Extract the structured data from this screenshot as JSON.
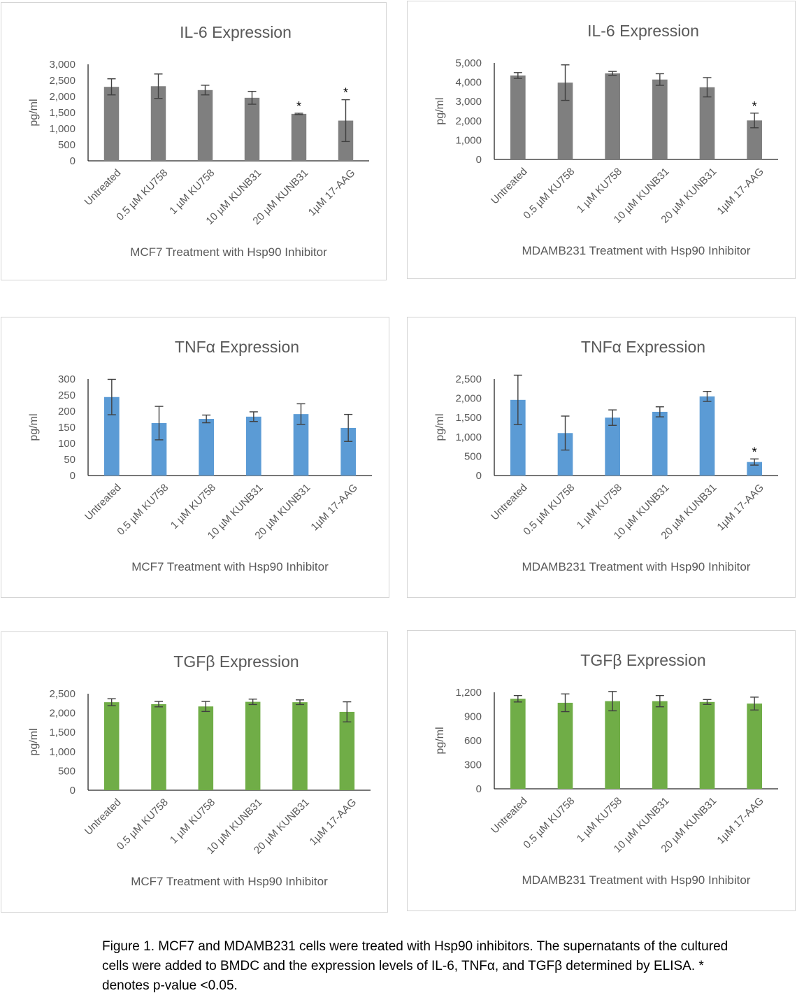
{
  "charts": [
    {
      "type": "bar",
      "title": "IL-6 Expression",
      "xlabel": "MCF7 Treatment with Hsp90 Inhibitor",
      "ylabel": "pg/ml",
      "color": "#7f7f7f",
      "ylim": [
        0,
        3000
      ],
      "yticks": [
        "0",
        "500",
        "1,000",
        "1,500",
        "2,000",
        "2,500",
        "3,000"
      ],
      "ytick_values": [
        0,
        500,
        1000,
        1500,
        2000,
        2500,
        3000
      ],
      "categories": [
        "Untreated",
        "0.5 µM KU758",
        "1 µM KU758",
        "10 µM KUNB31",
        "20 µM KUNB31",
        "1µM 17-AAG"
      ],
      "values": [
        2300,
        2320,
        2200,
        1960,
        1460,
        1250
      ],
      "errors": [
        250,
        380,
        150,
        200,
        20,
        650
      ],
      "significance": [
        "",
        "",
        "",
        "",
        "*",
        "*"
      ]
    },
    {
      "type": "bar",
      "title": "IL-6 Expression",
      "xlabel": "MDAMB231 Treatment with Hsp90 Inhibitor",
      "ylabel": "pg/ml",
      "color": "#7f7f7f",
      "ylim": [
        0,
        5000
      ],
      "yticks": [
        "0",
        "1,000",
        "2,000",
        "3,000",
        "4,000",
        "5,000"
      ],
      "ytick_values": [
        0,
        1000,
        2000,
        3000,
        4000,
        5000
      ],
      "categories": [
        "Untreated",
        "0.5 µM KU758",
        "1 µM KU758",
        "10 µM KUNB31",
        "20 µM KUNB31",
        "1µM 17-AAG"
      ],
      "values": [
        4350,
        3980,
        4460,
        4140,
        3740,
        2020
      ],
      "errors": [
        150,
        920,
        100,
        300,
        500,
        380
      ],
      "significance": [
        "",
        "",
        "",
        "",
        "",
        "*"
      ]
    },
    {
      "type": "bar",
      "title": "TNFα Expression",
      "xlabel": "MCF7 Treatment with Hsp90 Inhibitor",
      "ylabel": "pg/ml",
      "color": "#5b9bd5",
      "ylim": [
        0,
        300
      ],
      "yticks": [
        "0",
        "50",
        "100",
        "150",
        "200",
        "250",
        "300"
      ],
      "ytick_values": [
        0,
        50,
        100,
        150,
        200,
        250,
        300
      ],
      "categories": [
        "Untreated",
        "0.5 µM KU758",
        "1 µM KU758",
        "10 µM KUNB31",
        "20 µM KUNB31",
        "1µM 17-AAG"
      ],
      "values": [
        244,
        163,
        176,
        183,
        191,
        148
      ],
      "errors": [
        55,
        52,
        12,
        15,
        32,
        42
      ],
      "significance": [
        "",
        "",
        "",
        "",
        "",
        ""
      ]
    },
    {
      "type": "bar",
      "title": "TNFα Expression",
      "xlabel": "MDAMB231 Treatment with Hsp90 Inhibitor",
      "ylabel": "pg/ml",
      "color": "#5b9bd5",
      "ylim": [
        0,
        2500
      ],
      "yticks": [
        "0",
        "500",
        "1,000",
        "1,500",
        "2,000",
        "2,500"
      ],
      "ytick_values": [
        0,
        500,
        1000,
        1500,
        2000,
        2500
      ],
      "categories": [
        "Untreated",
        "0.5 µM KU758",
        "1 µM KU758",
        "10 µM KUNB31",
        "20 µM KUNB31",
        "1µM 17-AAG"
      ],
      "values": [
        1960,
        1100,
        1500,
        1650,
        2050,
        350
      ],
      "errors": [
        640,
        440,
        200,
        130,
        130,
        80
      ],
      "significance": [
        "",
        "",
        "",
        "",
        "",
        "*"
      ]
    },
    {
      "type": "bar",
      "title": "TGFβ Expression",
      "xlabel": "MCF7 Treatment with Hsp90 Inhibitor",
      "ylabel": "pg/ml",
      "color": "#70ad47",
      "ylim": [
        0,
        2500
      ],
      "yticks": [
        "0",
        "500",
        "1,000",
        "1,500",
        "2,000",
        "2,500"
      ],
      "ytick_values": [
        0,
        500,
        1000,
        1500,
        2000,
        2500
      ],
      "categories": [
        "Untreated",
        "0.5 µM KU758",
        "1 µM KU758",
        "10 µM KUNB31",
        "20 µM KUNB31",
        "1µM 17-AAG"
      ],
      "values": [
        2280,
        2230,
        2170,
        2290,
        2280,
        2030
      ],
      "errors": [
        90,
        70,
        130,
        70,
        60,
        260
      ],
      "significance": [
        "",
        "",
        "",
        "",
        "",
        ""
      ]
    },
    {
      "type": "bar",
      "title": "TGFβ Expression",
      "xlabel": "MDAMB231 Treatment with Hsp90 Inhibitor",
      "ylabel": "pg/ml",
      "color": "#70ad47",
      "ylim": [
        0,
        1200
      ],
      "yticks": [
        "0",
        "300",
        "600",
        "900",
        "1,200"
      ],
      "ytick_values": [
        0,
        300,
        600,
        900,
        1200
      ],
      "categories": [
        "Untreated",
        "0.5 µM KU758",
        "1 µM KU758",
        "10 µM KUNB31",
        "20 µM KUNB31",
        "1µM 17-AAG"
      ],
      "values": [
        1120,
        1070,
        1090,
        1090,
        1080,
        1060
      ],
      "errors": [
        40,
        110,
        120,
        70,
        30,
        80
      ],
      "significance": [
        "",
        "",
        "",
        "",
        "",
        ""
      ]
    }
  ],
  "caption": "Figure 1. MCF7 and MDAMB231 cells were treated with Hsp90 inhibitors. The supernatants of the cultured cells were added to BMDC and the expression levels of IL-6, TNFα, and TGFβ determined by ELISA. * denotes p-value <0.05."
}
